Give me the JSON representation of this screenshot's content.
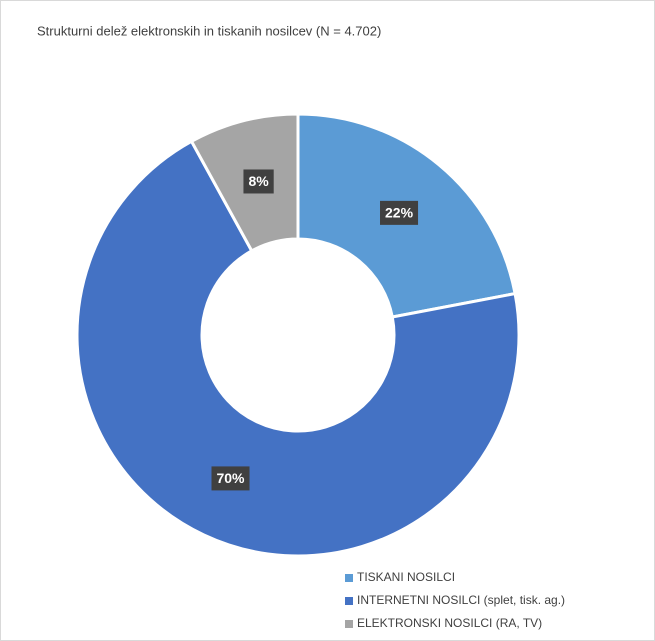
{
  "chart_data": {
    "type": "donut",
    "title": "Strukturni delež elektronskih in tiskanih nosilcev  (N = 4.702)",
    "categories": [
      "TISKANI NOSILCI",
      "INTERNETNI NOSILCI (splet, tisk. ag.)",
      "ELEKTRONSKI NOSILCI (RA, TV)"
    ],
    "values": [
      22,
      70,
      8
    ],
    "value_labels": [
      "22%",
      "70%",
      "8%"
    ],
    "colors": [
      "#5b9bd5",
      "#4472c4",
      "#a5a5a5"
    ],
    "legend": "bottom-right"
  }
}
